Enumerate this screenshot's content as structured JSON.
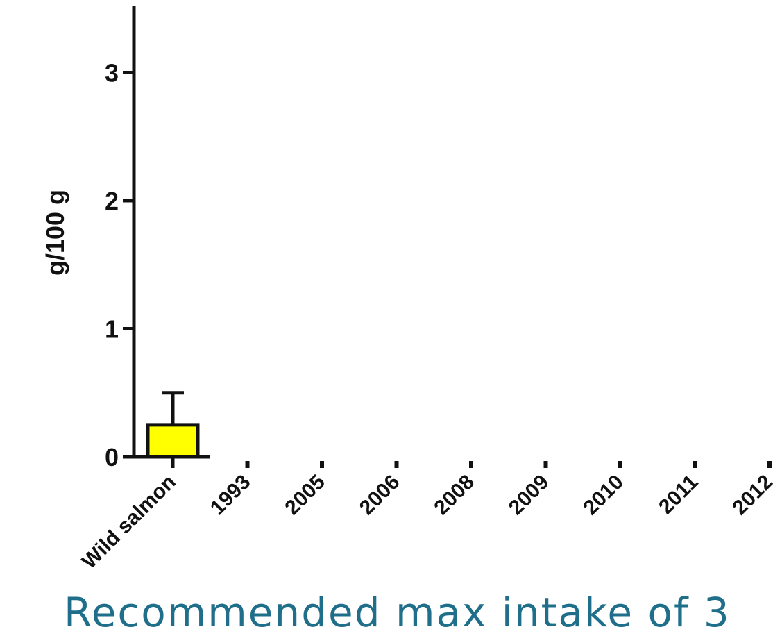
{
  "caption": "Recommended max intake of 3",
  "colors": {
    "bar": "#ffff00",
    "axis": "#111111",
    "caption": "#1f6f8b"
  },
  "chart_data": {
    "type": "bar",
    "ylabel": "g/100 g",
    "xlabel": "",
    "title": "",
    "ylim": [
      0,
      3.5
    ],
    "yticks": [
      "0",
      "1",
      "2",
      "3"
    ],
    "categories": [
      "Wild salmon",
      "1993",
      "2005",
      "2006",
      "2008",
      "2009",
      "2010",
      "2011",
      "2012"
    ],
    "series": [
      {
        "values": [
          0.25,
          null,
          null,
          null,
          null,
          null,
          null,
          null,
          null
        ],
        "error_upper": [
          0.5,
          null,
          null,
          null,
          null,
          null,
          null,
          null,
          null
        ]
      }
    ]
  }
}
